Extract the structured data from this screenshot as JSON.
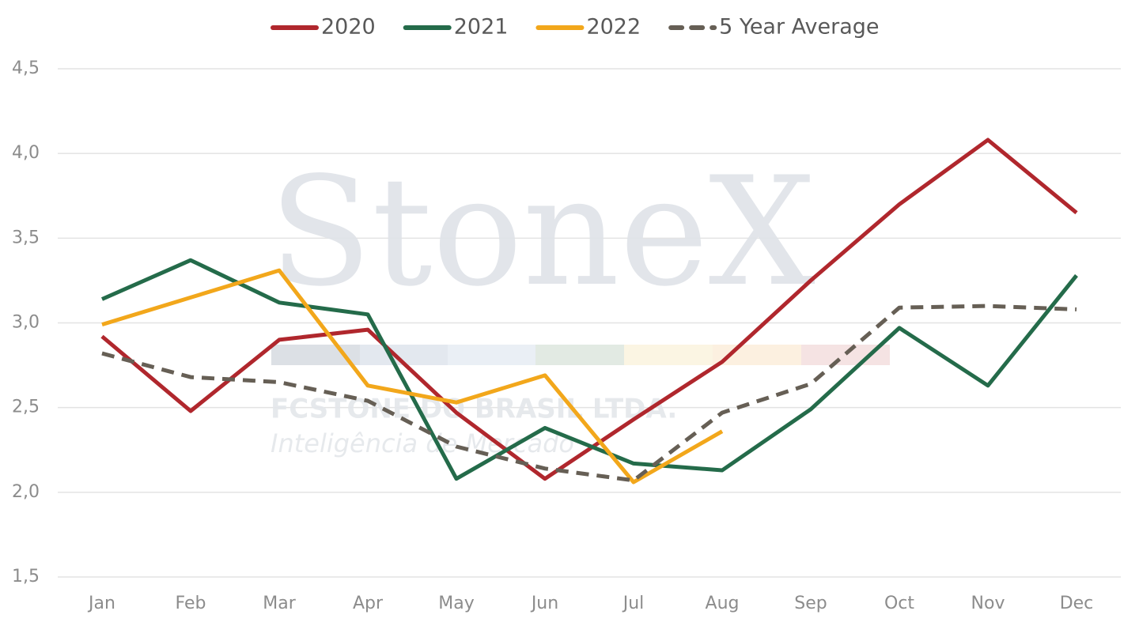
{
  "chart_data": {
    "type": "line",
    "categories": [
      "Jan",
      "Feb",
      "Mar",
      "Apr",
      "May",
      "Jun",
      "Jul",
      "Aug",
      "Sep",
      "Oct",
      "Nov",
      "Dec"
    ],
    "series": [
      {
        "name": "2020",
        "color": "#b0272d",
        "dashed": false,
        "values": [
          2.92,
          2.48,
          2.9,
          2.96,
          2.47,
          2.08,
          2.43,
          2.77,
          3.25,
          3.7,
          4.08,
          3.65
        ]
      },
      {
        "name": "2021",
        "color": "#246b4a",
        "dashed": false,
        "values": [
          3.14,
          3.37,
          3.12,
          3.05,
          2.08,
          2.38,
          2.17,
          2.13,
          2.49,
          2.97,
          2.63,
          3.28
        ]
      },
      {
        "name": "2022",
        "color": "#f2a71b",
        "dashed": false,
        "values": [
          2.99,
          3.15,
          3.31,
          2.63,
          2.53,
          2.69,
          2.06,
          2.36,
          null,
          null,
          null,
          null
        ]
      },
      {
        "name": "5 Year Average",
        "color": "#665f55",
        "dashed": true,
        "values": [
          2.82,
          2.68,
          2.65,
          2.54,
          2.27,
          2.14,
          2.07,
          2.47,
          2.64,
          3.09,
          3.1,
          3.08
        ]
      }
    ],
    "ylim": [
      1.5,
      4.5
    ],
    "yticks": [
      {
        "value": 1.5,
        "label": "1,5"
      },
      {
        "value": 2.0,
        "label": "2,0"
      },
      {
        "value": 2.5,
        "label": "2,5"
      },
      {
        "value": 3.0,
        "label": "3,0"
      },
      {
        "value": 3.5,
        "label": "3,5"
      },
      {
        "value": 4.0,
        "label": "4,0"
      },
      {
        "value": 4.5,
        "label": "4,5"
      }
    ],
    "grid": true,
    "legend": "top",
    "watermark": {
      "brand": "StoneX",
      "company": "FCSTONE DO BRASIL LTDA.",
      "tagline": "Inteligência de Mercado"
    }
  }
}
